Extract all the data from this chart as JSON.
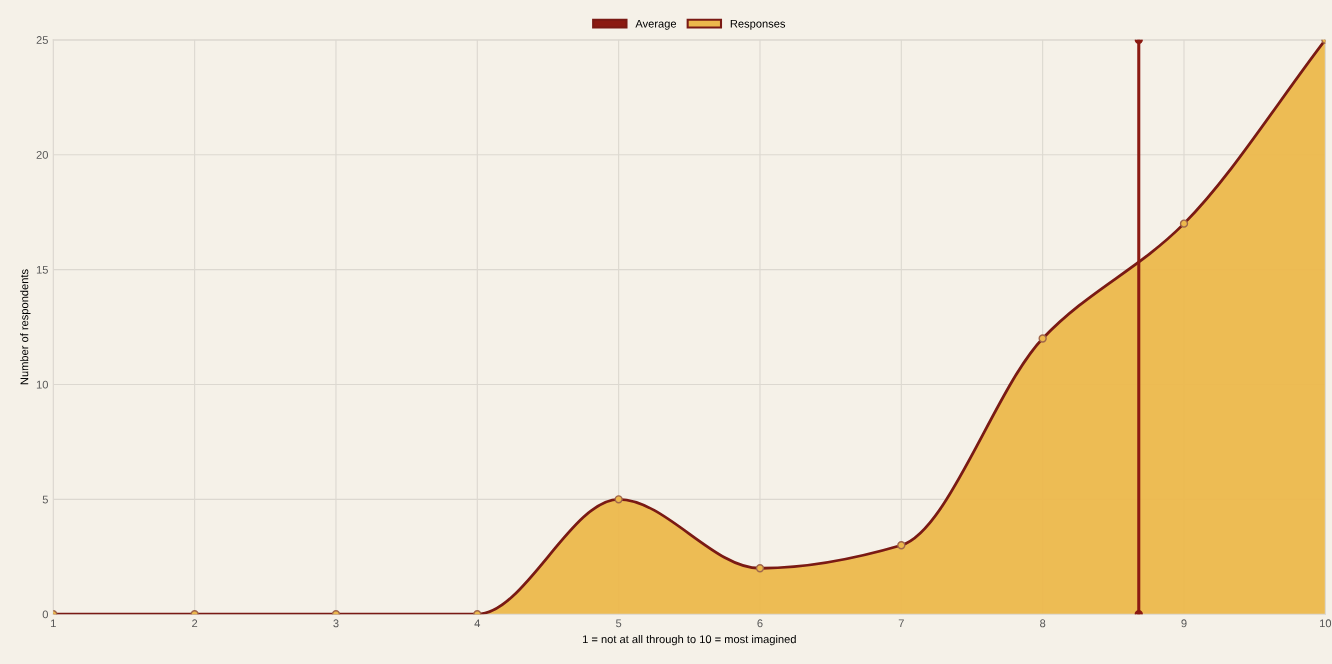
{
  "chart_data": {
    "type": "area",
    "xlabel": "1 = not at all through to 10 = most imagined",
    "ylabel": "Number of respondents",
    "x": [
      1,
      2,
      3,
      4,
      5,
      6,
      7,
      8,
      9,
      10
    ],
    "series": [
      {
        "name": "Average",
        "type": "line",
        "color": "#8b1a12",
        "x": [
          8.68,
          8.68
        ],
        "values": [
          0,
          25
        ]
      },
      {
        "name": "Responses",
        "color": "#ecb84c",
        "values": [
          0,
          0,
          0,
          0,
          5,
          2,
          3,
          12,
          17,
          25
        ]
      }
    ],
    "xlim": [
      1,
      10
    ],
    "xticks": [
      1,
      2,
      3,
      4,
      5,
      6,
      7,
      8,
      9,
      10
    ],
    "ylim": [
      0,
      25
    ],
    "yticks": [
      0,
      5,
      10,
      15,
      20,
      25
    ],
    "grid": true,
    "legend": "top",
    "marker": "circle"
  }
}
